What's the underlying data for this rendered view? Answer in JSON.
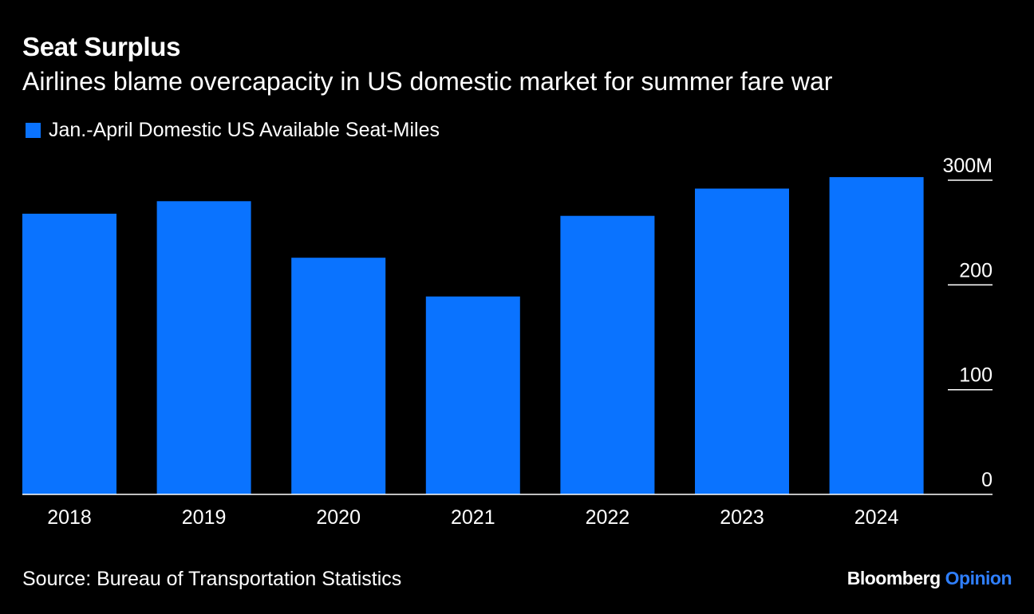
{
  "header": {
    "title": "Seat Surplus",
    "subtitle": "Airlines blame overcapacity in US domestic market for summer fare war"
  },
  "footer": {
    "source": "Source: Bureau of Transportation Statistics",
    "brand_name": "Bloomberg",
    "brand_accent": "Opinion"
  },
  "colors": {
    "background": "#000000",
    "bar": "#0a73ff",
    "text": "#ffffff",
    "brand_accent": "#2f7fff"
  },
  "chart_data": {
    "type": "bar",
    "title": "Seat Surplus",
    "subtitle": "Airlines blame overcapacity in US domestic market for summer fare war",
    "categories": [
      "2018",
      "2019",
      "2020",
      "2021",
      "2022",
      "2023",
      "2024"
    ],
    "series": [
      {
        "name": "Jan.-April Domestic US Available Seat-Miles",
        "values": [
          268,
          280,
          226,
          189,
          266,
          292,
          303
        ]
      }
    ],
    "ylim": [
      0,
      300
    ],
    "yticks": [
      {
        "value": 0,
        "label": "0"
      },
      {
        "value": 100,
        "label": "100"
      },
      {
        "value": 200,
        "label": "200"
      },
      {
        "value": 300,
        "label": "300M"
      }
    ],
    "y_axis_side": "right",
    "legend_position": "top-left",
    "grid": false
  }
}
